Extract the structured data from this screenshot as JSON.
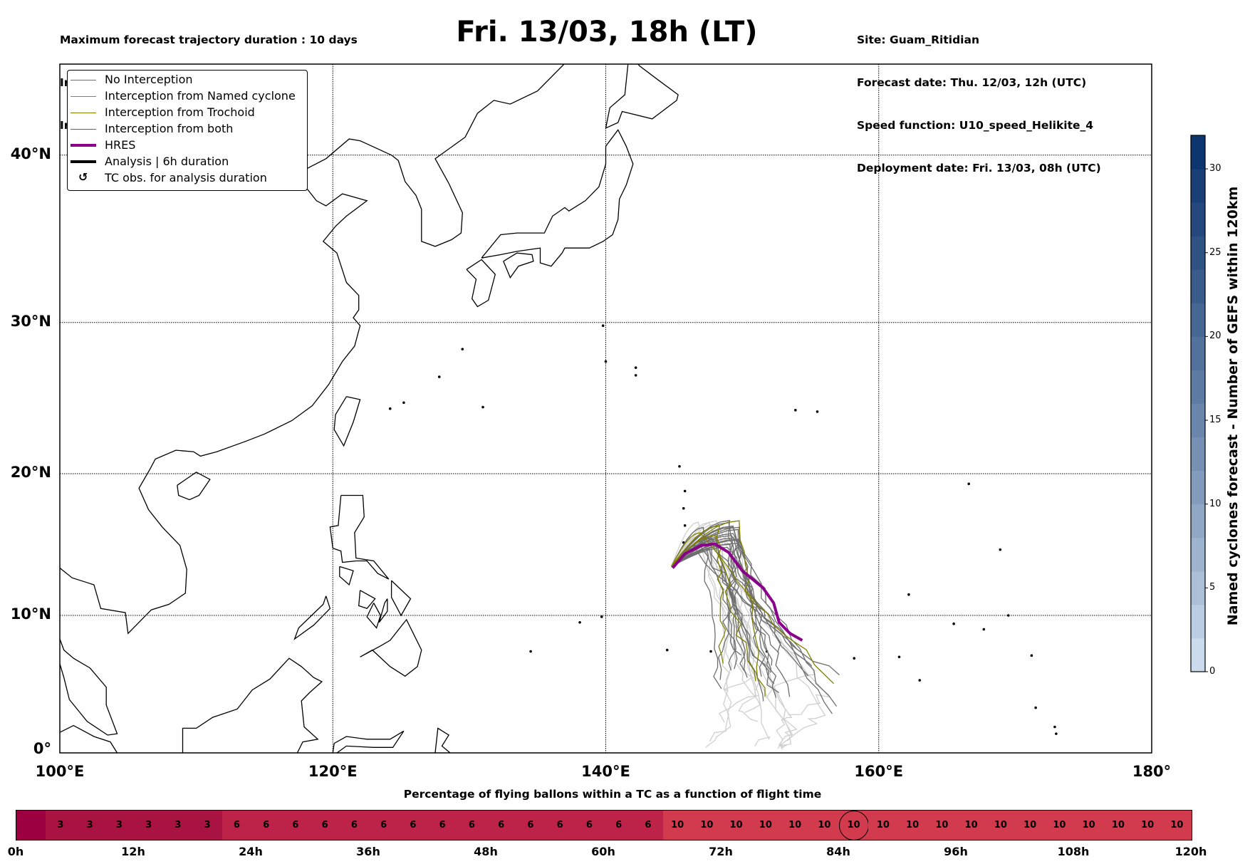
{
  "header": {
    "left_lines": [
      "Maximum forecast trajectory duration : 10 days",
      "Intercept distance: 300km",
      "Intercept RW2: 12km/h2"
    ],
    "right_lines": [
      "Site: Guam_Ritidian",
      "Forecast date: Thu. 12/03, 12h (UTC)",
      "Speed function: U10_speed_Helikite_4",
      "Deployment date: Fri. 13/03, 08h (UTC)"
    ],
    "title": "Fri. 13/03, 18h (LT)"
  },
  "legend": [
    {
      "label": "No Interception",
      "color": "#6e6e6e",
      "style": "thin"
    },
    {
      "label": "Interception from Named cyclone",
      "color": "#ff5500",
      "style": "thin"
    },
    {
      "label": "Interception from Trochoid",
      "color": "#808000",
      "style": "thin"
    },
    {
      "label": "Interception from both",
      "color": "#228b22",
      "style": "thin"
    },
    {
      "label": "HRES",
      "color": "#8b008b",
      "style": "thick"
    },
    {
      "label": "Analysis | 6h duration",
      "color": "#000000",
      "style": "thick"
    },
    {
      "label": "TC obs. for analysis duration",
      "color": "#000000",
      "style": "symbol",
      "symbol": "↺"
    }
  ],
  "map": {
    "lon_ticks": [
      "100°E",
      "120°E",
      "140°E",
      "160°E",
      "180°"
    ],
    "lat_ticks": [
      "0°",
      "10°N",
      "20°N",
      "30°N",
      "40°N"
    ],
    "lon_values": [
      100,
      120,
      140,
      160,
      180
    ],
    "lat_values": [
      0,
      10,
      20,
      30,
      40
    ],
    "site_lon": 144.8,
    "site_lat": 13.5
  },
  "colorbar": {
    "label": "Named cyclones forecast - Number of GEFS within 120km",
    "min": 0,
    "max": 32,
    "step": 2,
    "ticks": [
      "0",
      "5",
      "10",
      "15",
      "20",
      "25",
      "30"
    ],
    "tick_values": [
      0,
      5,
      10,
      15,
      20,
      25,
      30
    ]
  },
  "flight_time": {
    "title": "Percentage of flying ballons within a TC as a function of flight time",
    "values": [
      "",
      "3",
      "3",
      "3",
      "3",
      "3",
      "3",
      "6",
      "6",
      "6",
      "6",
      "6",
      "6",
      "6",
      "6",
      "6",
      "6",
      "6",
      "6",
      "6",
      "6",
      "6",
      "10",
      "10",
      "10",
      "10",
      "10",
      "10",
      "10",
      "10",
      "10",
      "10",
      "10",
      "10",
      "10",
      "10",
      "10",
      "10",
      "10",
      "10"
    ],
    "highlighted_index": 28,
    "colors": {
      "0": "#9c0040",
      "3": "#a91342",
      "6": "#bd2349",
      "10": "#d23b4e"
    },
    "hour_labels": [
      "0h",
      "12h",
      "24h",
      "36h",
      "48h",
      "60h",
      "72h",
      "84h",
      "96h",
      "108h",
      "120h"
    ]
  }
}
